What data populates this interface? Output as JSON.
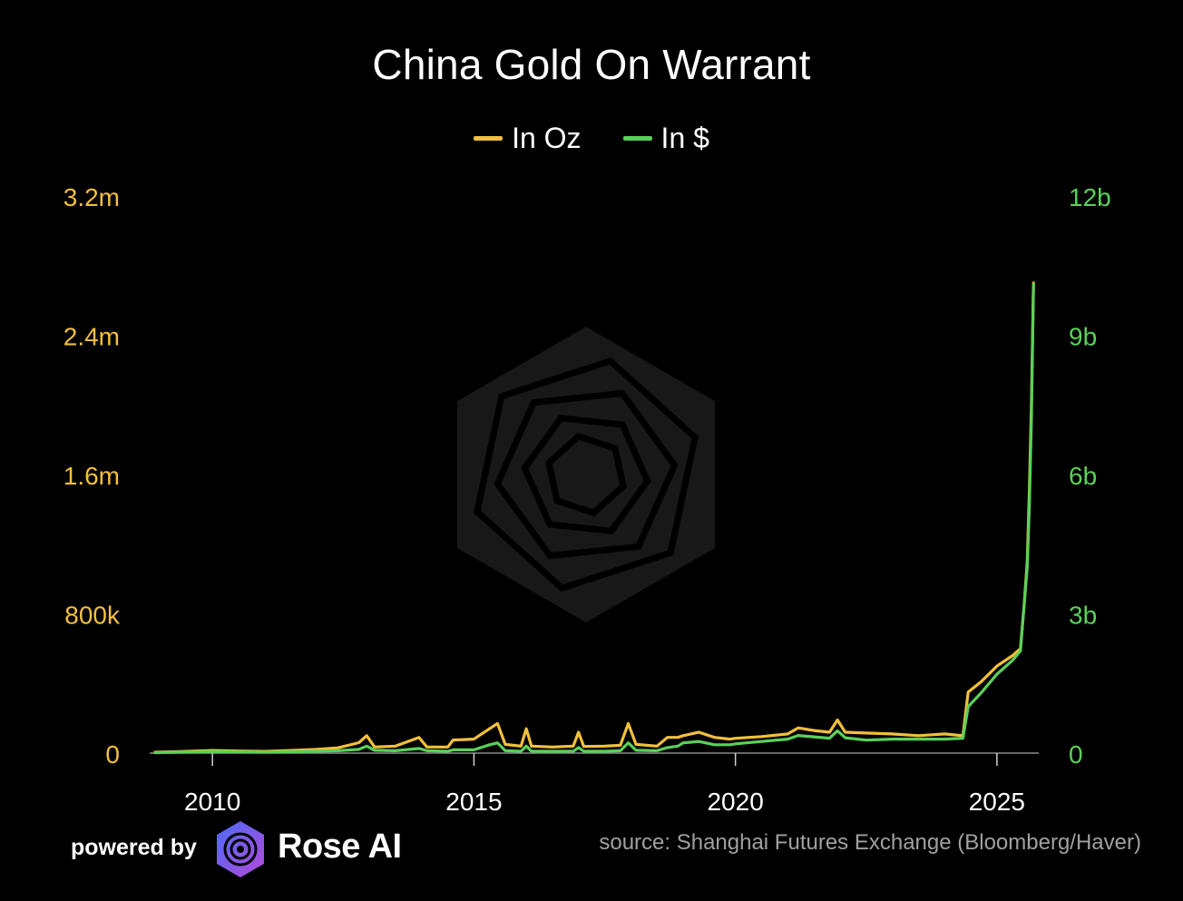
{
  "chart_data": {
    "type": "line",
    "title": "China Gold On Warrant",
    "legend_position": "top-center",
    "grid": false,
    "series": [
      {
        "name": "In Oz",
        "color": "#f2c03c",
        "axis": "left",
        "x": [
          2008.9,
          2009.3,
          2010.0,
          2010.5,
          2011.0,
          2011.5,
          2012.0,
          2012.4,
          2012.8,
          2012.95,
          2013.1,
          2013.5,
          2013.95,
          2014.1,
          2014.5,
          2014.6,
          2015.0,
          2015.3,
          2015.45,
          2015.6,
          2015.9,
          2016.0,
          2016.1,
          2016.5,
          2016.9,
          2017.0,
          2017.1,
          2017.5,
          2017.8,
          2017.95,
          2018.1,
          2018.5,
          2018.7,
          2018.9,
          2019.0,
          2019.3,
          2019.6,
          2019.9,
          2020.0,
          2020.5,
          2021.0,
          2021.2,
          2021.5,
          2021.8,
          2021.95,
          2022.1,
          2022.5,
          2023.0,
          2023.5,
          2024.0,
          2024.35,
          2024.45,
          2024.7,
          2025.0,
          2025.3,
          2025.45,
          2025.52,
          2025.58,
          2025.62,
          2025.66,
          2025.7
        ],
        "values": [
          5000,
          8000,
          15000,
          12000,
          10000,
          15000,
          22000,
          30000,
          60000,
          100000,
          35000,
          40000,
          90000,
          35000,
          35000,
          75000,
          80000,
          140000,
          170000,
          50000,
          40000,
          140000,
          40000,
          35000,
          40000,
          120000,
          38000,
          40000,
          45000,
          170000,
          50000,
          40000,
          90000,
          90000,
          100000,
          120000,
          90000,
          80000,
          85000,
          95000,
          110000,
          145000,
          130000,
          120000,
          190000,
          120000,
          115000,
          110000,
          100000,
          110000,
          100000,
          350000,
          410000,
          500000,
          560000,
          600000,
          850000,
          1100000,
          1500000,
          2000000,
          2700000
        ]
      },
      {
        "name": "In $",
        "color": "#5ad05a",
        "axis": "right",
        "x": [
          2008.9,
          2009.3,
          2010.0,
          2010.5,
          2011.0,
          2011.5,
          2012.0,
          2012.4,
          2012.8,
          2012.95,
          2013.1,
          2013.5,
          2013.95,
          2014.1,
          2014.5,
          2014.6,
          2015.0,
          2015.3,
          2015.45,
          2015.6,
          2015.9,
          2016.0,
          2016.1,
          2016.5,
          2016.9,
          2017.0,
          2017.1,
          2017.5,
          2017.8,
          2017.95,
          2018.1,
          2018.5,
          2018.7,
          2018.9,
          2019.0,
          2019.3,
          2019.6,
          2019.9,
          2020.0,
          2020.5,
          2021.0,
          2021.2,
          2021.5,
          2021.8,
          2021.95,
          2022.1,
          2022.5,
          2023.0,
          2023.5,
          2024.0,
          2024.35,
          2024.45,
          2024.7,
          2025.0,
          2025.3,
          2025.45,
          2025.52,
          2025.58,
          2025.62,
          2025.66,
          2025.7
        ],
        "values": [
          0.01,
          0.02,
          0.03,
          0.03,
          0.02,
          0.03,
          0.04,
          0.05,
          0.08,
          0.15,
          0.06,
          0.05,
          0.1,
          0.05,
          0.04,
          0.07,
          0.07,
          0.18,
          0.22,
          0.05,
          0.04,
          0.15,
          0.04,
          0.04,
          0.04,
          0.12,
          0.04,
          0.04,
          0.05,
          0.22,
          0.06,
          0.05,
          0.12,
          0.15,
          0.22,
          0.25,
          0.18,
          0.18,
          0.2,
          0.25,
          0.3,
          0.38,
          0.35,
          0.32,
          0.48,
          0.33,
          0.28,
          0.3,
          0.3,
          0.3,
          0.32,
          1.0,
          1.3,
          1.7,
          2.0,
          2.2,
          3.2,
          4.0,
          5.3,
          7.2,
          10.1
        ]
      }
    ],
    "left_axis": {
      "ticks": [
        "0",
        "800k",
        "1.6m",
        "2.4m",
        "3.2m"
      ],
      "tick_values": [
        0,
        800000,
        1600000,
        2400000,
        3200000
      ],
      "ylim": [
        0,
        3200000
      ],
      "color": "#f2c03c"
    },
    "right_axis": {
      "ticks": [
        "0",
        "3b",
        "6b",
        "9b",
        "12b"
      ],
      "tick_values": [
        0,
        3,
        6,
        9,
        12
      ],
      "ylim": [
        0,
        12
      ],
      "color": "#5ad05a"
    },
    "x_axis": {
      "ticks": [
        "2010",
        "2015",
        "2020",
        "2025"
      ],
      "tick_values": [
        2010,
        2015,
        2020,
        2025
      ],
      "xlim": [
        2008.8,
        2025.8
      ]
    }
  },
  "footer": {
    "powered_by": "powered by",
    "brand": "Rose AI",
    "source": "source: Shanghai Futures Exchange (Bloomberg/Haver)"
  }
}
